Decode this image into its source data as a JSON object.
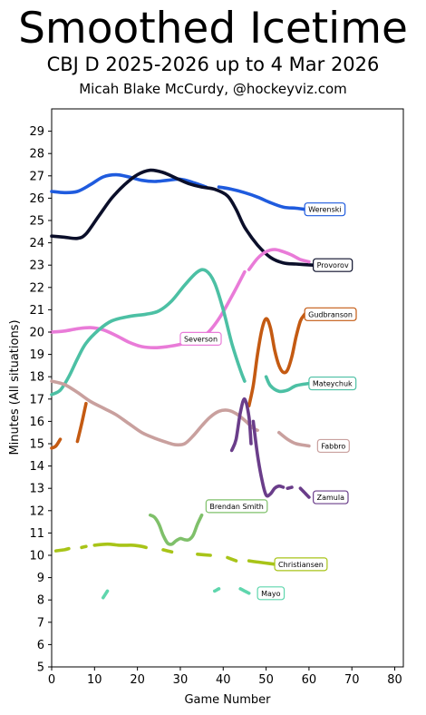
{
  "header": {
    "title": "Smoothed Icetime",
    "subtitle": "CBJ D 2025-2026 up to 4 Mar 2026",
    "credit": "Micah Blake McCurdy, @hockeyviz.com"
  },
  "chart_data": {
    "type": "line",
    "title": "Smoothed Icetime",
    "xlabel": "Game Number",
    "ylabel": "Minutes (All situations)",
    "xlim": [
      0,
      82
    ],
    "ylim": [
      5,
      30
    ],
    "xticks": [
      0,
      10,
      20,
      30,
      40,
      50,
      60,
      70,
      80
    ],
    "yticks": [
      5,
      6,
      7,
      8,
      9,
      10,
      11,
      12,
      13,
      14,
      15,
      16,
      17,
      18,
      19,
      20,
      21,
      22,
      23,
      24,
      25,
      26,
      27,
      28,
      29
    ],
    "grid": false,
    "series": [
      {
        "name": "Werenski",
        "color": "#1f5bde",
        "label_at": [
          59,
          25.5
        ],
        "segments": [
          [
            [
              0,
              26.3
            ],
            [
              3,
              26.25
            ],
            [
              6,
              26.3
            ],
            [
              9,
              26.6
            ],
            [
              12,
              26.95
            ],
            [
              15,
              27.05
            ],
            [
              18,
              26.95
            ],
            [
              21,
              26.8
            ],
            [
              24,
              26.75
            ],
            [
              27,
              26.8
            ],
            [
              30,
              26.85
            ],
            [
              33,
              26.7
            ],
            [
              36,
              26.5
            ]
          ],
          [
            [
              39,
              26.5
            ],
            [
              42,
              26.4
            ],
            [
              45,
              26.25
            ],
            [
              48,
              26.05
            ],
            [
              51,
              25.8
            ],
            [
              54,
              25.6
            ],
            [
              57,
              25.55
            ],
            [
              59,
              25.5
            ]
          ]
        ]
      },
      {
        "name": "Provorov",
        "color": "#0b0f2a",
        "label_at": [
          61,
          23.0
        ],
        "segments": [
          [
            [
              0,
              24.3
            ],
            [
              3,
              24.25
            ],
            [
              6,
              24.2
            ],
            [
              8,
              24.4
            ],
            [
              11,
              25.2
            ],
            [
              14,
              26.0
            ],
            [
              17,
              26.6
            ],
            [
              20,
              27.05
            ],
            [
              23,
              27.25
            ],
            [
              26,
              27.15
            ],
            [
              29,
              26.9
            ],
            [
              32,
              26.65
            ],
            [
              35,
              26.5
            ],
            [
              38,
              26.4
            ],
            [
              41,
              26.1
            ],
            [
              43,
              25.5
            ],
            [
              45,
              24.7
            ],
            [
              48,
              23.9
            ],
            [
              51,
              23.35
            ],
            [
              54,
              23.1
            ],
            [
              57,
              23.05
            ],
            [
              61,
              23.0
            ]
          ]
        ]
      },
      {
        "name": "Gudbranson",
        "color": "#c45a12",
        "label_at": [
          59,
          20.8
        ],
        "segments": [
          [
            [
              0,
              14.8
            ],
            [
              1,
              14.9
            ],
            [
              2,
              15.2
            ]
          ],
          [
            [
              6,
              15.1
            ],
            [
              7,
              15.9
            ],
            [
              8,
              16.8
            ]
          ],
          [
            [
              46,
              16.7
            ],
            [
              47,
              17.6
            ],
            [
              48,
              19.0
            ],
            [
              49,
              20.1
            ],
            [
              50,
              20.6
            ],
            [
              51,
              20.2
            ],
            [
              52,
              19.2
            ],
            [
              53,
              18.5
            ],
            [
              54,
              18.2
            ],
            [
              55,
              18.3
            ],
            [
              56,
              18.9
            ],
            [
              57,
              19.8
            ],
            [
              58,
              20.5
            ],
            [
              59,
              20.8
            ]
          ]
        ]
      },
      {
        "name": "Severson",
        "color": "#e97bd8",
        "label_at": [
          30,
          19.7
        ],
        "segments": [
          [
            [
              0,
              20.0
            ],
            [
              3,
              20.05
            ],
            [
              6,
              20.15
            ],
            [
              9,
              20.2
            ],
            [
              12,
              20.1
            ],
            [
              15,
              19.85
            ],
            [
              18,
              19.55
            ],
            [
              21,
              19.35
            ],
            [
              24,
              19.3
            ],
            [
              27,
              19.35
            ],
            [
              30,
              19.45
            ],
            [
              33,
              19.6
            ],
            [
              36,
              19.9
            ],
            [
              39,
              20.6
            ],
            [
              42,
              21.6
            ],
            [
              45,
              22.7
            ]
          ],
          [
            [
              46,
              22.8
            ],
            [
              48,
              23.3
            ],
            [
              50,
              23.6
            ],
            [
              52,
              23.7
            ],
            [
              54,
              23.6
            ],
            [
              56,
              23.45
            ],
            [
              58,
              23.25
            ],
            [
              60,
              23.15
            ]
          ]
        ]
      },
      {
        "name": "Mateychuk",
        "color": "#4cc0a4",
        "label_at": [
          60,
          17.7
        ],
        "segments": [
          [
            [
              0,
              17.2
            ],
            [
              2,
              17.4
            ],
            [
              4,
              18.0
            ],
            [
              6,
              18.8
            ],
            [
              8,
              19.5
            ],
            [
              11,
              20.1
            ],
            [
              14,
              20.5
            ],
            [
              18,
              20.7
            ],
            [
              22,
              20.8
            ],
            [
              25,
              20.95
            ],
            [
              28,
              21.4
            ],
            [
              31,
              22.1
            ],
            [
              34,
              22.7
            ],
            [
              36,
              22.75
            ],
            [
              38,
              22.2
            ],
            [
              40,
              21.0
            ],
            [
              42,
              19.5
            ],
            [
              44,
              18.3
            ],
            [
              45,
              17.8
            ]
          ],
          [
            [
              50,
              18.0
            ],
            [
              51,
              17.6
            ],
            [
              53,
              17.35
            ],
            [
              55,
              17.4
            ],
            [
              57,
              17.6
            ],
            [
              60,
              17.7
            ]
          ]
        ]
      },
      {
        "name": "Fabbro",
        "color": "#c9a09e",
        "label_at": [
          62,
          14.9
        ],
        "segments": [
          [
            [
              0,
              17.8
            ],
            [
              3,
              17.65
            ],
            [
              6,
              17.3
            ],
            [
              9,
              16.9
            ],
            [
              12,
              16.6
            ],
            [
              15,
              16.3
            ],
            [
              18,
              15.9
            ],
            [
              21,
              15.5
            ],
            [
              24,
              15.25
            ],
            [
              27,
              15.05
            ],
            [
              29,
              14.95
            ],
            [
              31,
              15.0
            ],
            [
              33,
              15.35
            ],
            [
              35,
              15.8
            ],
            [
              37,
              16.2
            ],
            [
              39,
              16.45
            ],
            [
              41,
              16.5
            ],
            [
              43,
              16.35
            ],
            [
              45,
              16.05
            ],
            [
              47,
              15.7
            ],
            [
              48,
              15.6
            ]
          ],
          [
            [
              53,
              15.5
            ],
            [
              55,
              15.2
            ],
            [
              57,
              15.0
            ],
            [
              60,
              14.9
            ]
          ]
        ]
      },
      {
        "name": "Zamula",
        "color": "#6a3d8a",
        "label_at": [
          61,
          12.6
        ],
        "segments": [
          [
            [
              42,
              14.7
            ],
            [
              43,
              15.2
            ],
            [
              44,
              16.4
            ],
            [
              45,
              17.0
            ],
            [
              46,
              16.2
            ],
            [
              46.5,
              15.0
            ]
          ],
          [
            [
              47,
              16.0
            ],
            [
              48,
              14.5
            ],
            [
              49,
              13.4
            ],
            [
              50,
              12.7
            ],
            [
              51,
              12.75
            ],
            [
              52,
              13.0
            ],
            [
              53,
              13.1
            ],
            [
              54,
              13.05
            ]
          ],
          [
            [
              55,
              13.0
            ],
            [
              56,
              13.05
            ]
          ],
          [
            [
              58,
              13.0
            ],
            [
              59,
              12.8
            ],
            [
              60,
              12.6
            ]
          ]
        ]
      },
      {
        "name": "Brendan Smith",
        "color": "#7fc06a",
        "label_at": [
          36,
          12.2
        ],
        "segments": [
          [
            [
              23,
              11.8
            ],
            [
              24,
              11.7
            ],
            [
              25,
              11.4
            ],
            [
              26,
              10.9
            ],
            [
              27,
              10.55
            ],
            [
              28,
              10.5
            ],
            [
              29,
              10.65
            ],
            [
              30,
              10.75
            ],
            [
              31,
              10.7
            ],
            [
              32,
              10.7
            ],
            [
              33,
              10.9
            ],
            [
              34,
              11.4
            ],
            [
              35,
              11.8
            ]
          ]
        ]
      },
      {
        "name": "Christiansen",
        "color": "#a8c418",
        "label_at": [
          52,
          9.6
        ],
        "segments": [
          [
            [
              1,
              10.2
            ],
            [
              3,
              10.25
            ],
            [
              4,
              10.3
            ]
          ],
          [
            [
              7,
              10.35
            ],
            [
              8,
              10.4
            ]
          ],
          [
            [
              10,
              10.45
            ],
            [
              13,
              10.5
            ],
            [
              16,
              10.45
            ],
            [
              19,
              10.45
            ],
            [
              21,
              10.4
            ],
            [
              22,
              10.35
            ]
          ],
          [
            [
              26,
              10.25
            ],
            [
              28,
              10.15
            ]
          ],
          [
            [
              34,
              10.05
            ],
            [
              37,
              10.0
            ]
          ],
          [
            [
              41,
              9.9
            ],
            [
              43,
              9.75
            ]
          ],
          [
            [
              46,
              9.75
            ],
            [
              48,
              9.7
            ],
            [
              50,
              9.65
            ],
            [
              52,
              9.6
            ]
          ]
        ]
      },
      {
        "name": "Mayo",
        "color": "#5fd6ad",
        "label_at": [
          48,
          8.3
        ],
        "segments": [
          [
            [
              12,
              8.1
            ],
            [
              13,
              8.4
            ]
          ],
          [
            [
              38,
              8.4
            ],
            [
              39,
              8.5
            ]
          ],
          [
            [
              44,
              8.5
            ],
            [
              45,
              8.4
            ],
            [
              46,
              8.3
            ]
          ]
        ]
      }
    ]
  }
}
